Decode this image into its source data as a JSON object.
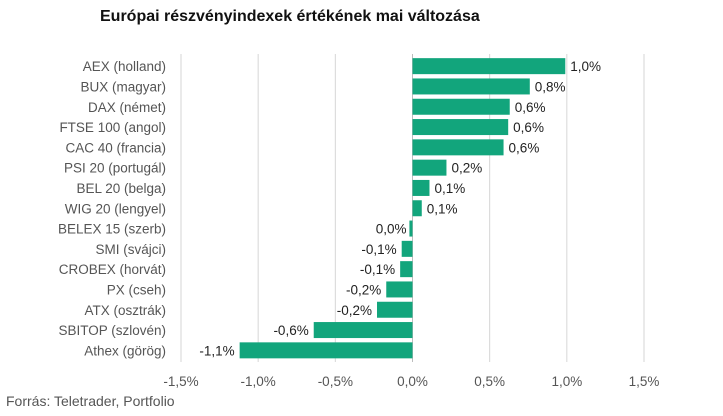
{
  "chart_data": {
    "type": "bar",
    "orientation": "horizontal",
    "title": "Európai részvényindexek értékének mai változása",
    "xlabel": "",
    "ylabel": "",
    "xlim": [
      -1.5,
      1.5
    ],
    "ticks": [
      -1.5,
      -1.0,
      -0.5,
      0.0,
      0.5,
      1.0,
      1.5
    ],
    "tick_labels": [
      "-1,5%",
      "-1,0%",
      "-0,5%",
      "0,0%",
      "0,5%",
      "1,0%",
      "1,5%"
    ],
    "grid": true,
    "bar_color": "#12a57c",
    "categories": [
      "AEX (holland)",
      "BUX (magyar)",
      "DAX (német)",
      "FTSE 100 (angol)",
      "CAC 40 (francia)",
      "PSI 20 (portugál)",
      "BEL 20 (belga)",
      "WIG 20 (lengyel)",
      "BELEX 15 (szerb)",
      "SMI (svájci)",
      "CROBEX (horvát)",
      "PX (cseh)",
      "ATX (osztrák)",
      "SBITOP (szlovén)",
      "Athex (görög)"
    ],
    "values": [
      0.99,
      0.76,
      0.63,
      0.62,
      0.59,
      0.22,
      0.11,
      0.06,
      -0.02,
      -0.07,
      -0.08,
      -0.17,
      -0.23,
      -0.64,
      -1.12
    ],
    "data_labels": [
      "1,0%",
      "0,8%",
      "0,6%",
      "0,6%",
      "0,6%",
      "0,2%",
      "0,1%",
      "0,1%",
      "0,0%",
      "-0,1%",
      "-0,1%",
      "-0,2%",
      "-0,2%",
      "-0,6%",
      "-1,1%"
    ]
  },
  "source": "Forrás: Teletrader, Portfolio"
}
